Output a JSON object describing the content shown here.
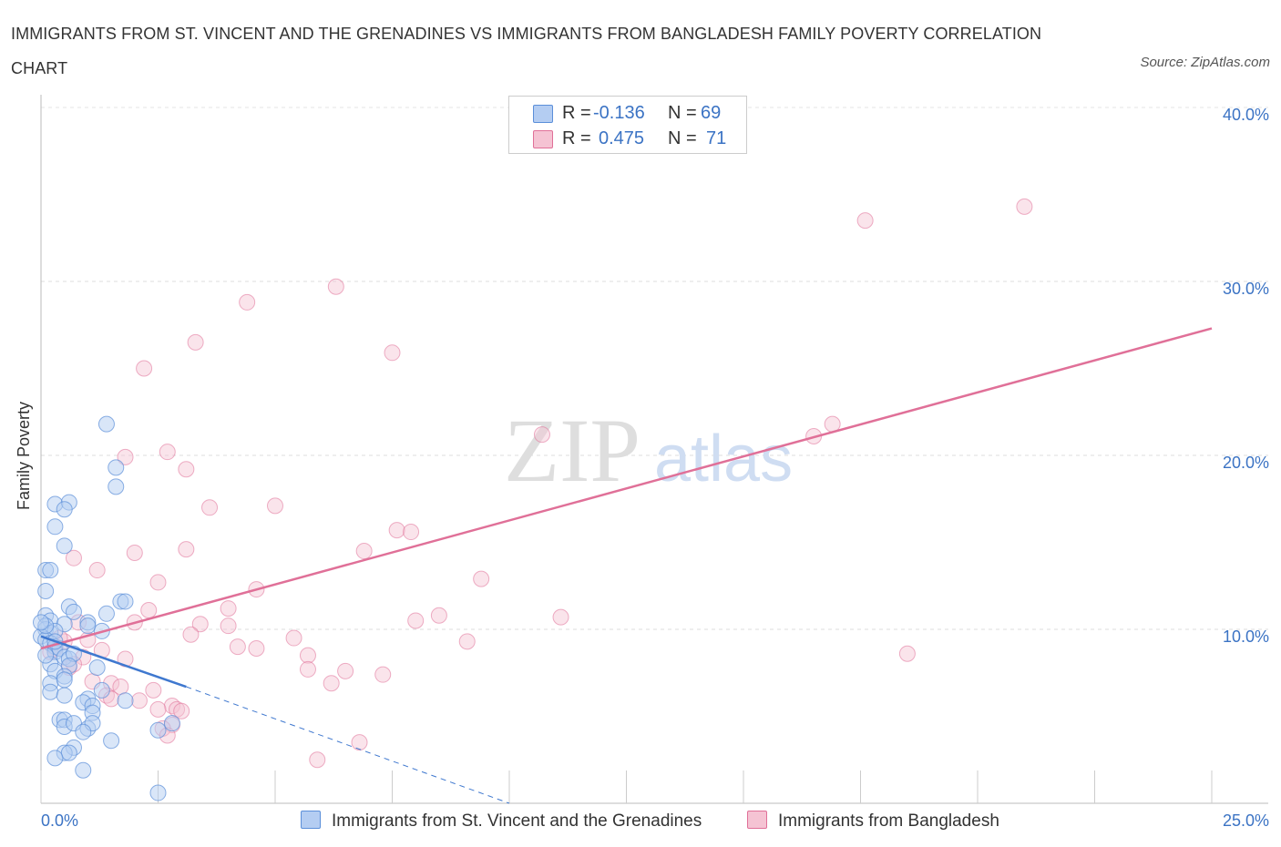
{
  "header": {
    "title": "IMMIGRANTS FROM ST. VINCENT AND THE GRENADINES VS IMMIGRANTS FROM BANGLADESH FAMILY POVERTY CORRELATION CHART",
    "source": "Source: ZipAtlas.com"
  },
  "legend": {
    "series1": {
      "r_label": "R =",
      "r_value": "-0.136",
      "n_label": "N =",
      "n_value": "69"
    },
    "series2": {
      "r_label": "R =",
      "r_value": "0.475",
      "n_label": "N =",
      "n_value": "71"
    }
  },
  "watermark": {
    "zip": "ZIP",
    "atlas": "atlas"
  },
  "colors": {
    "blue": "#5b8fd9",
    "blue_fill": "#b4cdf2",
    "pink": "#e07098",
    "pink_fill": "#f5c3d3",
    "axis_text": "#3b73c4"
  },
  "chart_data": {
    "type": "scatter",
    "title": "IMMIGRANTS FROM ST. VINCENT AND THE GRENADINES VS IMMIGRANTS FROM BANGLADESH FAMILY POVERTY CORRELATION CHART",
    "xlabel": "",
    "ylabel": "Family Poverty",
    "xlim": [
      0,
      25
    ],
    "ylim": [
      0,
      40
    ],
    "x_tick_labels": [
      "0.0%",
      "25.0%"
    ],
    "y_tick_values": [
      10,
      20,
      30,
      40
    ],
    "y_tick_labels": [
      "10.0%",
      "20.0%",
      "30.0%",
      "40.0%"
    ],
    "series": [
      {
        "name": "Immigrants from St. Vincent and the Grenadines",
        "color": "#5b8fd9",
        "R": -0.136,
        "N": 69,
        "trend_solid": [
          [
            0,
            9.6
          ],
          [
            3.1,
            6.7
          ]
        ],
        "trend_dashed": [
          [
            3.1,
            6.7
          ],
          [
            10,
            0
          ]
        ],
        "points": [
          [
            1.4,
            21.8
          ],
          [
            1.6,
            19.3
          ],
          [
            1.6,
            18.2
          ],
          [
            0.3,
            17.2
          ],
          [
            0.6,
            17.3
          ],
          [
            0.5,
            16.9
          ],
          [
            0.3,
            15.9
          ],
          [
            0.5,
            14.8
          ],
          [
            0.1,
            13.4
          ],
          [
            0.2,
            13.4
          ],
          [
            0.1,
            12.2
          ],
          [
            1.7,
            11.6
          ],
          [
            1.8,
            11.6
          ],
          [
            0.6,
            11.3
          ],
          [
            0.7,
            11.0
          ],
          [
            1.4,
            10.9
          ],
          [
            1.0,
            10.4
          ],
          [
            1.0,
            10.2
          ],
          [
            0.1,
            10.8
          ],
          [
            0.2,
            10.5
          ],
          [
            0.5,
            10.3
          ],
          [
            0.1,
            10.0
          ],
          [
            0.2,
            9.8
          ],
          [
            0.3,
            9.9
          ],
          [
            0.0,
            9.6
          ],
          [
            0.1,
            9.4
          ],
          [
            0.2,
            9.2
          ],
          [
            0.3,
            9.0
          ],
          [
            0.3,
            8.7
          ],
          [
            0.4,
            8.9
          ],
          [
            0.5,
            8.4
          ],
          [
            0.6,
            8.3
          ],
          [
            0.7,
            8.6
          ],
          [
            0.2,
            8.0
          ],
          [
            0.6,
            7.9
          ],
          [
            1.2,
            7.8
          ],
          [
            1.3,
            9.9
          ],
          [
            0.3,
            7.6
          ],
          [
            0.5,
            7.3
          ],
          [
            0.2,
            6.9
          ],
          [
            0.5,
            7.1
          ],
          [
            0.2,
            6.4
          ],
          [
            0.5,
            6.2
          ],
          [
            1.0,
            6.0
          ],
          [
            0.9,
            5.8
          ],
          [
            1.1,
            5.6
          ],
          [
            1.3,
            6.5
          ],
          [
            1.8,
            5.9
          ],
          [
            1.1,
            5.2
          ],
          [
            0.4,
            4.8
          ],
          [
            0.5,
            4.8
          ],
          [
            0.5,
            4.4
          ],
          [
            0.7,
            4.6
          ],
          [
            1.0,
            4.3
          ],
          [
            1.1,
            4.6
          ],
          [
            0.9,
            4.1
          ],
          [
            1.5,
            3.6
          ],
          [
            2.5,
            4.2
          ],
          [
            2.8,
            4.6
          ],
          [
            0.7,
            3.2
          ],
          [
            0.5,
            2.9
          ],
          [
            0.6,
            2.9
          ],
          [
            0.3,
            2.6
          ],
          [
            0.9,
            1.9
          ],
          [
            2.5,
            0.6
          ],
          [
            0.1,
            10.2
          ],
          [
            0.0,
            10.4
          ],
          [
            0.3,
            9.3
          ],
          [
            0.1,
            8.5
          ]
        ]
      },
      {
        "name": "Immigrants from Bangladesh",
        "color": "#e07098",
        "R": 0.475,
        "N": 71,
        "trend_solid": [
          [
            0,
            8.9
          ],
          [
            25,
            27.3
          ]
        ],
        "points": [
          [
            21.0,
            34.3
          ],
          [
            17.6,
            33.5
          ],
          [
            6.3,
            29.7
          ],
          [
            4.4,
            28.8
          ],
          [
            3.3,
            26.5
          ],
          [
            7.5,
            25.9
          ],
          [
            2.2,
            25.0
          ],
          [
            16.9,
            21.8
          ],
          [
            16.5,
            21.1
          ],
          [
            10.7,
            21.2
          ],
          [
            1.8,
            19.9
          ],
          [
            2.7,
            20.2
          ],
          [
            3.1,
            19.2
          ],
          [
            3.6,
            17.0
          ],
          [
            5.0,
            17.1
          ],
          [
            7.6,
            15.7
          ],
          [
            7.9,
            15.6
          ],
          [
            3.1,
            14.6
          ],
          [
            6.9,
            14.5
          ],
          [
            2.0,
            14.4
          ],
          [
            0.7,
            14.1
          ],
          [
            1.2,
            13.4
          ],
          [
            9.4,
            12.9
          ],
          [
            2.5,
            12.7
          ],
          [
            4.6,
            12.3
          ],
          [
            2.3,
            11.1
          ],
          [
            4.0,
            11.2
          ],
          [
            8.0,
            10.5
          ],
          [
            8.5,
            10.8
          ],
          [
            11.1,
            10.7
          ],
          [
            2.0,
            10.4
          ],
          [
            3.4,
            10.3
          ],
          [
            4.0,
            10.2
          ],
          [
            0.8,
            10.4
          ],
          [
            3.2,
            9.7
          ],
          [
            5.4,
            9.5
          ],
          [
            9.1,
            9.3
          ],
          [
            4.2,
            9.0
          ],
          [
            4.6,
            8.9
          ],
          [
            5.7,
            8.5
          ],
          [
            0.5,
            9.3
          ],
          [
            1.3,
            8.8
          ],
          [
            0.3,
            8.9
          ],
          [
            0.9,
            8.4
          ],
          [
            1.8,
            8.3
          ],
          [
            18.5,
            8.6
          ],
          [
            0.6,
            7.8
          ],
          [
            5.7,
            7.7
          ],
          [
            6.5,
            7.6
          ],
          [
            7.3,
            7.4
          ],
          [
            1.1,
            7.0
          ],
          [
            1.5,
            6.9
          ],
          [
            1.7,
            6.7
          ],
          [
            6.2,
            6.9
          ],
          [
            2.4,
            6.5
          ],
          [
            1.4,
            6.2
          ],
          [
            1.5,
            6.0
          ],
          [
            2.1,
            5.9
          ],
          [
            2.8,
            5.6
          ],
          [
            2.5,
            5.4
          ],
          [
            2.9,
            5.4
          ],
          [
            3.0,
            5.3
          ],
          [
            2.8,
            4.5
          ],
          [
            2.6,
            4.3
          ],
          [
            2.7,
            3.9
          ],
          [
            6.8,
            3.5
          ],
          [
            5.9,
            2.5
          ],
          [
            0.2,
            8.7
          ],
          [
            0.4,
            9.5
          ],
          [
            1.0,
            9.4
          ],
          [
            0.7,
            8.0
          ]
        ]
      }
    ]
  },
  "bottom_legend": [
    {
      "label": "Immigrants from St. Vincent and the Grenadines"
    },
    {
      "label": "Immigrants from Bangladesh"
    }
  ]
}
